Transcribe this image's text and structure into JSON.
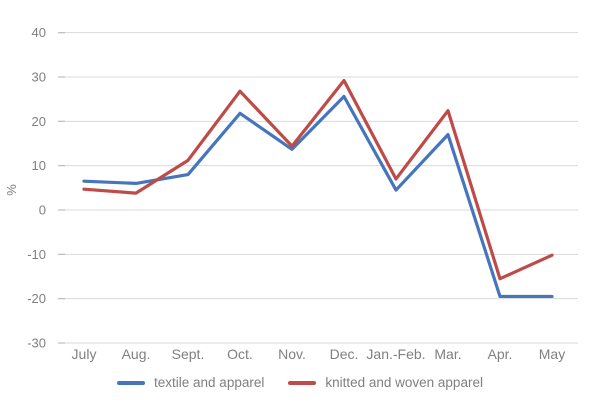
{
  "chart_data": {
    "type": "line",
    "title": "",
    "xlabel": "",
    "ylabel": "%",
    "categories": [
      "July",
      "Aug.",
      "Sept.",
      "Oct.",
      "Nov.",
      "Dec.",
      "Jan.-Feb.",
      "Mar.",
      "Apr.",
      "May"
    ],
    "series": [
      {
        "name": "textile and apparel",
        "color": "#4575BC",
        "values": [
          6.5,
          6.0,
          8.0,
          21.8,
          13.7,
          25.6,
          4.5,
          17.0,
          -19.5,
          -19.5
        ]
      },
      {
        "name": "knitted and woven apparel",
        "color": "#BE4B48",
        "values": [
          4.7,
          3.8,
          11.2,
          26.8,
          14.4,
          29.2,
          7.0,
          22.4,
          -15.5,
          -10.2
        ]
      }
    ],
    "ylim": [
      -30,
      40
    ],
    "yticks": [
      40,
      30,
      20,
      10,
      0,
      -10,
      -20,
      -30
    ],
    "grid": true,
    "legend_position": "bottom",
    "gridline_color": "#D9D9D9",
    "tick_color": "#BDBDBD",
    "label_color": "#808080",
    "background": "#FFFFFF"
  }
}
